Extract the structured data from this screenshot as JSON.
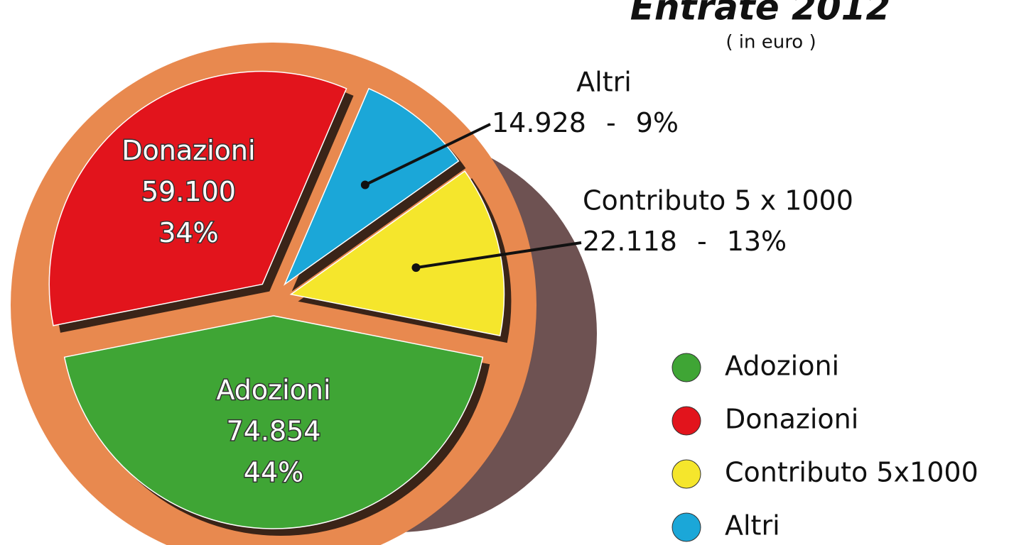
{
  "chart_data": {
    "type": "pie",
    "title": "Entrate 2012",
    "subtitle": "( in euro )",
    "categories": [
      "Adozioni",
      "Donazioni",
      "Altri",
      "Contributo 5 x 1000"
    ],
    "values": [
      74854,
      59100,
      14928,
      22118
    ],
    "value_labels": [
      "74.854",
      "59.100",
      "14.928",
      "22.118"
    ],
    "percentages": [
      44,
      34,
      9,
      13
    ],
    "percentage_labels": [
      "44%",
      "34%",
      "9%",
      "13%"
    ],
    "separator": "-",
    "colors": [
      "#3fa535",
      "#e2141c",
      "#1ba7d8",
      "#f5e62c"
    ],
    "legend": [
      "Adozioni",
      "Donazioni",
      "Contributo 5x1000",
      "Altri"
    ],
    "legend_colors": [
      "#3fa535",
      "#e2141c",
      "#f5e62c",
      "#1ba7d8"
    ]
  }
}
